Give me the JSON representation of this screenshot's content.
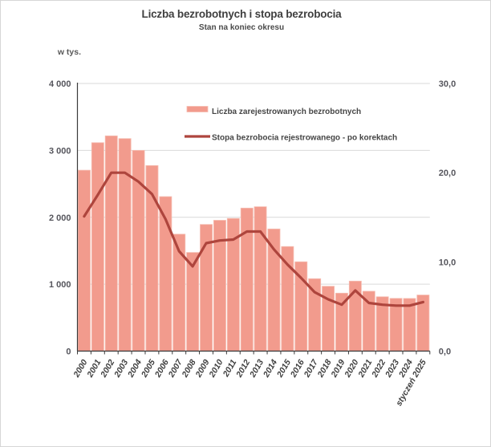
{
  "chart": {
    "title": "Liczba bezrobotnych i stopa bezrobocia",
    "subtitle": "Stan na koniec okresu",
    "unit_label": "w tys."
  },
  "chart_data": {
    "type": "bar",
    "title": "Liczba bezrobotnych i stopa bezrobocia",
    "subtitle": "Stan na koniec okresu",
    "categories": [
      "2000",
      "2001",
      "2002",
      "2003",
      "2004",
      "2005",
      "2006",
      "2007",
      "2008",
      "2009",
      "2010",
      "2011",
      "2012",
      "2013",
      "2014",
      "2015",
      "2016",
      "2017",
      "2018",
      "2019",
      "2020",
      "2021",
      "2022",
      "2023",
      "2024",
      "styczeń 2025"
    ],
    "series": [
      {
        "name": "Liczba zarejestrowanych bezrobotnych",
        "type": "bar",
        "axis": "left",
        "color": "#F29B8D",
        "edge_color": "#F6BCB1",
        "values": [
          2703,
          3115,
          3217,
          3176,
          3000,
          2773,
          2309,
          1747,
          1474,
          1893,
          1955,
          1983,
          2137,
          2158,
          1825,
          1563,
          1335,
          1082,
          969,
          866,
          1046,
          895,
          812,
          788,
          787,
          838
        ]
      },
      {
        "name": "Stopa bezrobocia rejestrowanego - po korektach",
        "type": "line",
        "axis": "right",
        "color": "#AE453D",
        "values": [
          15.1,
          17.5,
          20.0,
          20.0,
          19.0,
          17.6,
          14.8,
          11.2,
          9.5,
          12.1,
          12.4,
          12.5,
          13.4,
          13.4,
          11.4,
          9.7,
          8.2,
          6.6,
          5.8,
          5.2,
          6.8,
          5.4,
          5.2,
          5.1,
          5.1,
          5.5
        ]
      }
    ],
    "left_axis": {
      "unit_label": "w tys.",
      "min": 0,
      "max": 4000,
      "ticks": [
        {
          "v": 0,
          "label": "0"
        },
        {
          "v": 1000,
          "label": "1 000"
        },
        {
          "v": 2000,
          "label": "2 000"
        },
        {
          "v": 3000,
          "label": "3 000"
        },
        {
          "v": 4000,
          "label": "4 000"
        }
      ]
    },
    "right_axis": {
      "min": 0,
      "max": 30,
      "ticks": [
        {
          "v": 0,
          "label": "0,0"
        },
        {
          "v": 10,
          "label": "10,0"
        },
        {
          "v": 20,
          "label": "20,0"
        },
        {
          "v": 30,
          "label": "30,0"
        }
      ]
    },
    "grid": true,
    "legend_position": "top-inside",
    "colors": {
      "grid": "#d9d9d9",
      "axis": "#3a3a3a",
      "tick_text": "#55555c",
      "category_text": "#3f3f3f"
    }
  }
}
